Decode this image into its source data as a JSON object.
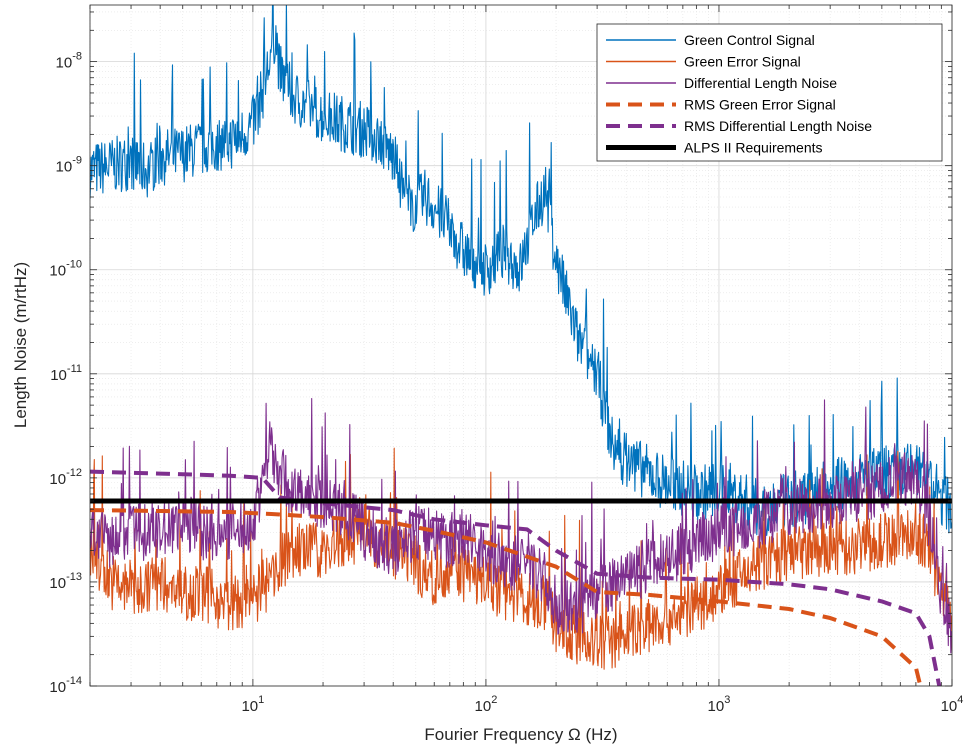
{
  "chart_data": {
    "type": "line",
    "title": "",
    "xlabel": "Fourier Frequency Ω (Hz)",
    "ylabel": "Length Noise (m/rtHz)",
    "xscale": "log",
    "yscale": "log",
    "xlim": [
      2,
      10000
    ],
    "ylim": [
      1e-14,
      3.5e-08
    ],
    "grid": true,
    "legend_position": "top-right",
    "x_tick_labels": [
      {
        "base": "10",
        "exp": "1",
        "value": 10
      },
      {
        "base": "10",
        "exp": "2",
        "value": 100
      },
      {
        "base": "10",
        "exp": "3",
        "value": 1000
      },
      {
        "base": "10",
        "exp": "4",
        "value": 10000
      }
    ],
    "y_tick_labels": [
      {
        "base": "10",
        "exp": "-14",
        "value": 1e-14
      },
      {
        "base": "10",
        "exp": "-13",
        "value": 1e-13
      },
      {
        "base": "10",
        "exp": "-12",
        "value": 1e-12
      },
      {
        "base": "10",
        "exp": "-11",
        "value": 1e-11
      },
      {
        "base": "10",
        "exp": "-10",
        "value": 1e-10
      },
      {
        "base": "10",
        "exp": "-9",
        "value": 1e-09
      },
      {
        "base": "10",
        "exp": "-8",
        "value": 1e-08
      }
    ],
    "series": [
      {
        "name": "Green Control Signal",
        "color": "#0072BD",
        "style": "solid",
        "width": 1.1,
        "x": [
          2,
          2.5,
          3,
          3.5,
          4,
          5,
          6,
          7,
          8,
          9,
          10,
          11,
          12,
          12.5,
          13,
          15,
          18,
          20,
          25,
          30,
          35,
          40,
          45,
          50,
          55,
          60,
          70,
          80,
          90,
          100,
          120,
          140,
          160,
          180,
          200,
          230,
          250,
          300,
          350,
          400,
          500,
          600,
          700,
          800,
          1000,
          1500,
          2000,
          3000,
          5000,
          7000,
          10000
        ],
        "y": [
          9e-10,
          1e-09,
          1.1e-09,
          9e-10,
          1.2e-09,
          1.3e-09,
          1.5e-09,
          1.6e-09,
          1.7e-09,
          2e-09,
          2.5e-09,
          5e-09,
          1.2e-08,
          2e-08,
          8e-09,
          4.5e-09,
          3.5e-09,
          3e-09,
          2.5e-09,
          2.2e-09,
          1.8e-09,
          1.2e-09,
          5e-10,
          4e-10,
          5e-10,
          4e-10,
          2.5e-10,
          1.5e-10,
          1.2e-10,
          1e-10,
          1.5e-10,
          1e-10,
          3e-10,
          6e-10,
          1.2e-10,
          4e-11,
          2e-11,
          1e-11,
          2e-12,
          1.5e-12,
          1.1e-12,
          9e-13,
          8e-13,
          7e-13,
          8e-13,
          5e-13,
          6e-13,
          8e-13,
          1.1e-12,
          1.2e-12,
          5e-13
        ]
      },
      {
        "name": "Green Error Signal",
        "color": "#D95319",
        "style": "solid",
        "width": 1.1,
        "x": [
          2,
          2.5,
          3,
          4,
          5,
          6,
          8,
          10,
          12,
          13,
          15,
          20,
          25,
          30,
          40,
          50,
          60,
          70,
          80,
          100,
          120,
          150,
          180,
          200,
          250,
          300,
          400,
          500,
          700,
          1000,
          1500,
          2000,
          3000,
          5000,
          7000,
          8000,
          9000,
          10000
        ],
        "y": [
          2e-13,
          1e-13,
          8e-14,
          1e-13,
          8e-14,
          8e-14,
          6e-14,
          7e-14,
          1e-13,
          1.5e-13,
          2e-13,
          2e-13,
          2.5e-13,
          3e-13,
          2e-13,
          1.5e-13,
          1e-13,
          1.5e-13,
          1.2e-13,
          1e-13,
          8e-14,
          7e-14,
          6e-14,
          4e-14,
          3e-14,
          2.5e-14,
          3e-14,
          4e-14,
          5e-14,
          8e-14,
          1.5e-13,
          1.8e-13,
          2e-13,
          2.5e-13,
          3e-13,
          2e-13,
          8e-14,
          4e-14
        ]
      },
      {
        "name": "Differential Length Noise",
        "color": "#7E2F8E",
        "style": "solid",
        "width": 1.1,
        "x": [
          2,
          2.5,
          3,
          4,
          5,
          6,
          8,
          10,
          11,
          12,
          13,
          15,
          20,
          25,
          30,
          40,
          50,
          60,
          70,
          80,
          100,
          120,
          150,
          180,
          200,
          250,
          300,
          400,
          500,
          700,
          1000,
          1500,
          2000,
          3000,
          5000,
          7000,
          8000,
          9000,
          10000
        ],
        "y": [
          3e-13,
          2.5e-13,
          3e-13,
          3e-13,
          4e-13,
          3e-13,
          3e-13,
          3.5e-13,
          1e-12,
          2e-12,
          1.2e-12,
          7e-13,
          6e-13,
          5e-13,
          3e-13,
          2e-13,
          3e-13,
          3e-13,
          2.5e-13,
          3e-13,
          2e-13,
          1.5e-13,
          1.5e-13,
          1e-13,
          6e-14,
          5e-14,
          8e-14,
          1e-13,
          1.5e-13,
          2e-13,
          3e-13,
          4e-13,
          5e-13,
          6e-13,
          8e-13,
          1e-12,
          4e-13,
          8e-14,
          3e-14
        ]
      },
      {
        "name": "RMS Green Error Signal",
        "color": "#D95319",
        "style": "dashed",
        "width": 4,
        "x": [
          2,
          4,
          8,
          12,
          20,
          40,
          60,
          100,
          200,
          300,
          500,
          1000,
          2000,
          3000,
          5000,
          7000,
          7500,
          7800
        ],
        "y": [
          4.9e-13,
          4.8e-13,
          4.7e-13,
          4.5e-13,
          4.2e-13,
          3.7e-13,
          3.1e-13,
          2.4e-13,
          1.4e-13,
          8e-14,
          7.5e-14,
          6.5e-14,
          5.5e-14,
          4.5e-14,
          3e-14,
          1.5e-14,
          8e-15,
          5e-15
        ]
      },
      {
        "name": "RMS Differential Length Noise",
        "color": "#7E2F8E",
        "style": "dashed",
        "width": 4,
        "x": [
          2,
          4,
          8,
          11,
          13,
          20,
          40,
          60,
          100,
          150,
          200,
          300,
          500,
          1000,
          2000,
          3000,
          5000,
          7000,
          8000,
          8500,
          9000
        ],
        "y": [
          1.15e-12,
          1.1e-12,
          1.05e-12,
          1e-12,
          6.5e-13,
          5.7e-13,
          4.9e-13,
          4e-13,
          3.5e-13,
          3.2e-13,
          2e-13,
          1.2e-13,
          1.1e-13,
          1.05e-13,
          9.5e-14,
          8.5e-14,
          6.5e-14,
          5e-14,
          3e-14,
          1.5e-14,
          8e-15
        ]
      },
      {
        "name": "ALPS II Requirements",
        "color": "#000000",
        "style": "solid",
        "width": 5,
        "x": [
          2,
          10000
        ],
        "y": [
          6e-13,
          6e-13
        ]
      }
    ]
  }
}
